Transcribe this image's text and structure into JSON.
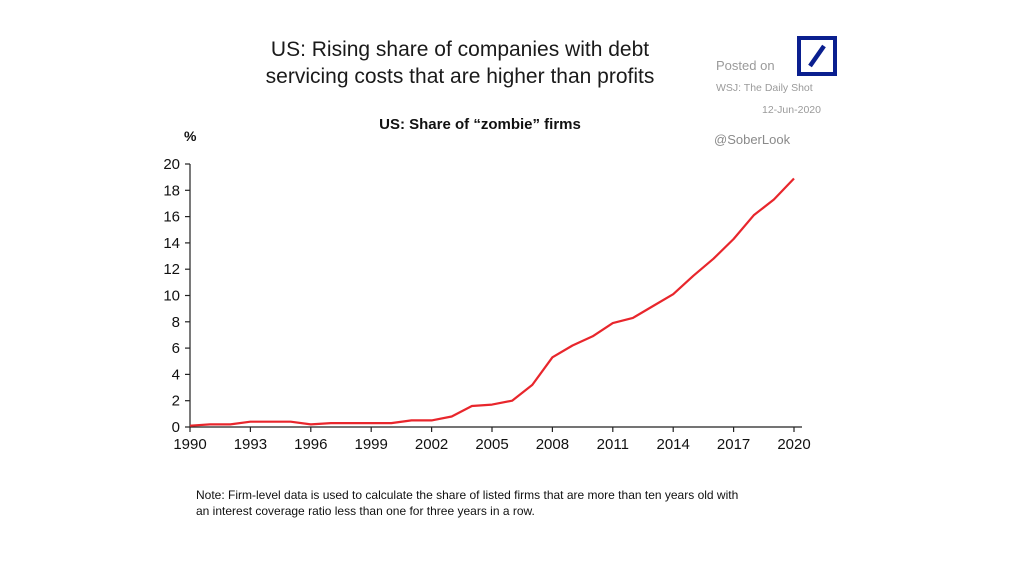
{
  "header": {
    "title_line1": "US: Rising share of companies with debt",
    "title_line2": "servicing costs that are higher than profits"
  },
  "source": {
    "posted": "Posted on",
    "outlet": "WSJ: The Daily Shot",
    "date": "12-Jun-2020",
    "handle": "@SoberLook",
    "logo_icon": "deutsche-bank-logo-icon",
    "logo_color": "#0a1f8f"
  },
  "chart_data": {
    "type": "line",
    "title": "US: Share of “zombie” firms",
    "ylabel": "%",
    "xlim": [
      1990,
      2020
    ],
    "ylim": [
      0,
      20
    ],
    "x_ticks": [
      "1990",
      "1993",
      "1996",
      "1999",
      "2002",
      "2005",
      "2008",
      "2011",
      "2014",
      "2017",
      "2020"
    ],
    "y_ticks": [
      "0",
      "2",
      "4",
      "6",
      "8",
      "10",
      "12",
      "14",
      "16",
      "18",
      "20"
    ],
    "grid": false,
    "line_color": "#e8262c",
    "series": [
      {
        "x": [
          1990,
          1991,
          1992,
          1993,
          1994,
          1995,
          1996,
          1997,
          1998,
          1999,
          2000,
          2001,
          2002,
          2003,
          2004,
          2005,
          2006,
          2007,
          2008,
          2009,
          2010,
          2011,
          2012,
          2013,
          2014,
          2015,
          2016,
          2017,
          2018,
          2019,
          2020
        ],
        "values": [
          0.1,
          0.2,
          0.2,
          0.4,
          0.4,
          0.4,
          0.2,
          0.3,
          0.3,
          0.3,
          0.3,
          0.5,
          0.5,
          0.8,
          1.6,
          1.7,
          2.0,
          3.2,
          5.3,
          6.2,
          6.9,
          7.9,
          8.3,
          9.2,
          10.1,
          11.5,
          12.8,
          14.3,
          16.1,
          17.3,
          18.9
        ]
      }
    ]
  },
  "note": {
    "line1": "Note: Firm-level data is used to calculate the share of listed firms that are more than ten years old with",
    "line2": "an interest coverage ratio less than one for three years in a row."
  }
}
